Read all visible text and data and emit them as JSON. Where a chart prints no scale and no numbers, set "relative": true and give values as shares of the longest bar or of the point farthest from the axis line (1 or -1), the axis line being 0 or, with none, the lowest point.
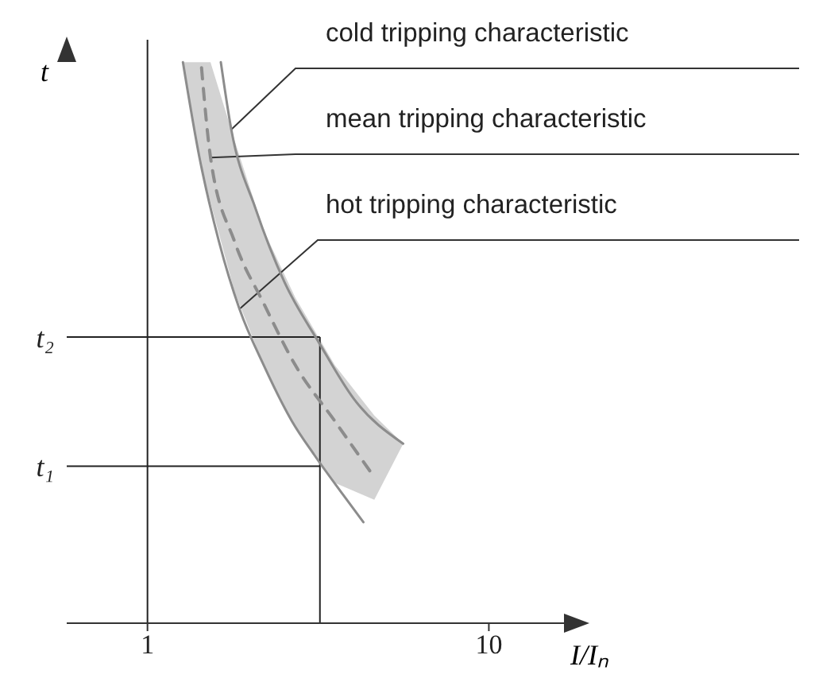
{
  "chart_data": {
    "type": "line",
    "relative": true,
    "xlabel": "I/Iₙ",
    "ylabel": "t",
    "log": "x",
    "xlim": [
      0.58,
      16.6
    ],
    "xticks": [
      1,
      10
    ],
    "series": [
      {
        "name": "cold tripping characteristic",
        "color": "#8c8c8c",
        "x": [
          1.64,
          1.76,
          2.07,
          2.51,
          3.18,
          4.02,
          5.61
        ],
        "values": [
          1.0,
          0.88,
          0.74,
          0.61,
          0.5,
          0.4,
          0.32
        ]
      },
      {
        "name": "mean tripping characteristic",
        "color": "#8c8c8c",
        "line_style": "dashed",
        "x": [
          1.27,
          1.44,
          1.53,
          1.8,
          2.19,
          2.71,
          3.54,
          4.62,
          5.61
        ],
        "values": [
          null,
          0.99,
          0.83,
          0.68,
          0.57,
          0.46,
          0.36,
          0.26,
          null
        ],
        "lower": [
          1.0,
          0.81,
          0.75,
          0.59,
          0.46,
          0.35,
          0.25,
          0.22,
          0.32
        ],
        "upper": [
          1.0,
          1.0,
          1.0,
          0.86,
          0.7,
          0.58,
          0.46,
          0.37,
          0.32
        ]
      },
      {
        "name": "hot tripping characteristic",
        "color": "#8c8c8c",
        "x": [
          1.27,
          1.42,
          1.62,
          1.86,
          2.19,
          2.65,
          3.08,
          3.73,
          4.29
        ],
        "values": [
          1.0,
          0.83,
          0.68,
          0.56,
          0.46,
          0.36,
          0.3,
          0.23,
          0.18
        ]
      }
    ],
    "ref_lines": [
      {
        "axis": "x",
        "value": 1,
        "label": null,
        "color": "#222222"
      },
      {
        "axis": "x",
        "value": 3.2,
        "label": null,
        "color": "#222222"
      },
      {
        "axis": "y",
        "value": 0.51,
        "label": "t₂",
        "color": "#222222"
      },
      {
        "axis": "y",
        "value": 0.28,
        "label": "t₁",
        "color": "#222222"
      }
    ]
  }
}
